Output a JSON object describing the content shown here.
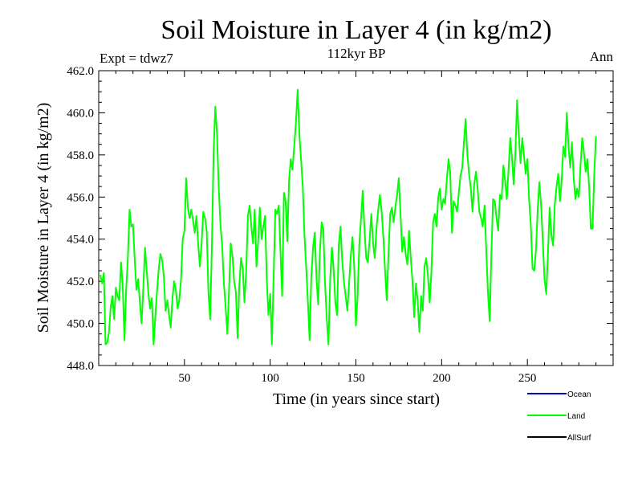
{
  "chart_data": {
    "type": "line",
    "title": "Soil Moisture in Layer 4 (in kg/m2)",
    "subtitle": "112kyr BP",
    "expt_label": "Expt = tdwz7",
    "period_label": "Ann",
    "xlabel": "Time (in years since start)",
    "ylabel": "Soil Moisture in Layer 4 (in kg/m2)",
    "xlim": [
      0,
      300
    ],
    "ylim": [
      448,
      462
    ],
    "x_ticks": [
      50,
      100,
      150,
      200,
      250
    ],
    "y_ticks": [
      "448.0",
      "450.0",
      "452.0",
      "454.0",
      "456.0",
      "458.0",
      "460.0",
      "462.0"
    ],
    "legend": [
      {
        "name": "Ocean",
        "color": "#0000cc"
      },
      {
        "name": "Land",
        "color": "#00ff00"
      },
      {
        "name": "AllSurf",
        "color": "#000000"
      }
    ],
    "series": [
      {
        "name": "Land",
        "color": "#00ff00",
        "x_start": 1,
        "x_step": 1,
        "values": [
          452.3,
          451.9,
          452.4,
          449.0,
          449.1,
          449.6,
          450.8,
          451.3,
          450.2,
          451.7,
          451.3,
          451.1,
          452.9,
          451.8,
          449.2,
          451.6,
          453.1,
          455.4,
          454.6,
          454.7,
          453.0,
          451.6,
          452.1,
          451.0,
          450.0,
          451.7,
          453.6,
          452.5,
          451.4,
          450.7,
          451.2,
          449.0,
          450.3,
          451.5,
          452.6,
          453.3,
          453.0,
          452.2,
          450.6,
          451.1,
          450.4,
          449.8,
          451.2,
          452.0,
          451.6,
          450.7,
          451.1,
          452.1,
          454.0,
          454.4,
          456.9,
          455.5,
          455.0,
          455.4,
          454.9,
          454.3,
          455.1,
          453.8,
          452.7,
          453.8,
          455.3,
          455.0,
          454.4,
          451.5,
          450.2,
          453.6,
          458.2,
          460.3,
          459.0,
          456.4,
          454.7,
          453.7,
          451.9,
          450.8,
          449.5,
          451.6,
          453.8,
          453.2,
          452.0,
          451.5,
          449.3,
          451.8,
          453.1,
          452.6,
          451.0,
          452.5,
          455.1,
          455.6,
          454.6,
          453.8,
          455.4,
          452.7,
          453.9,
          455.5,
          454.0,
          454.6,
          455.1,
          452.1,
          450.4,
          451.4,
          449.0,
          452.1,
          455.4,
          455.2,
          455.6,
          453.4,
          451.3,
          456.2,
          455.8,
          453.9,
          456.8,
          457.8,
          457.3,
          458.4,
          459.5,
          461.1,
          459.0,
          457.8,
          456.5,
          454.2,
          452.7,
          451.0,
          449.2,
          452.2,
          453.6,
          454.3,
          452.1,
          450.9,
          453.4,
          454.8,
          454.5,
          451.9,
          450.2,
          449.0,
          452.1,
          453.6,
          452.6,
          451.0,
          450.4,
          453.7,
          454.6,
          453.0,
          452.0,
          451.3,
          450.6,
          451.9,
          453.2,
          454.1,
          452.7,
          449.9,
          451.3,
          453.8,
          455.0,
          456.3,
          454.5,
          453.1,
          452.9,
          454.0,
          455.2,
          453.8,
          453.1,
          454.5,
          455.4,
          456.1,
          455.3,
          454.1,
          452.5,
          451.1,
          453.3,
          455.2,
          455.5,
          454.8,
          455.5,
          456.1,
          456.9,
          455.2,
          453.4,
          454.1,
          453.3,
          452.8,
          454.4,
          453.1,
          452.0,
          450.3,
          451.9,
          451.1,
          449.6,
          451.3,
          450.6,
          452.7,
          453.1,
          452.3,
          451.0,
          452.4,
          454.8,
          455.2,
          454.6,
          456.0,
          456.4,
          455.4,
          455.9,
          455.7,
          456.8,
          457.8,
          457.2,
          454.3,
          455.8,
          455.6,
          455.3,
          456.2,
          457.0,
          457.4,
          458.6,
          459.7,
          458.0,
          457.1,
          456.4,
          455.3,
          456.6,
          457.2,
          456.4,
          455.3,
          455.0,
          454.6,
          455.6,
          453.5,
          451.5,
          450.1,
          453.3,
          455.9,
          455.8,
          455.0,
          454.4,
          456.1,
          455.9,
          457.5,
          456.8,
          455.9,
          457.3,
          458.8,
          457.9,
          456.6,
          458.1,
          460.6,
          458.9,
          457.6,
          458.8,
          458.0,
          457.1,
          457.8,
          455.9,
          454.7,
          452.6,
          452.5,
          453.5,
          455.4,
          456.7,
          455.6,
          453.9,
          452.1,
          451.4,
          453.3,
          455.5,
          454.2,
          453.7,
          455.7,
          456.5,
          457.1,
          455.8,
          456.8,
          458.4,
          457.9,
          460.0,
          458.4,
          457.4,
          458.6,
          456.9,
          455.9,
          456.4,
          456.0,
          457.5,
          458.8,
          458.1,
          457.2,
          457.8,
          456.5,
          454.5,
          454.5,
          457.1,
          458.9
        ]
      }
    ]
  }
}
